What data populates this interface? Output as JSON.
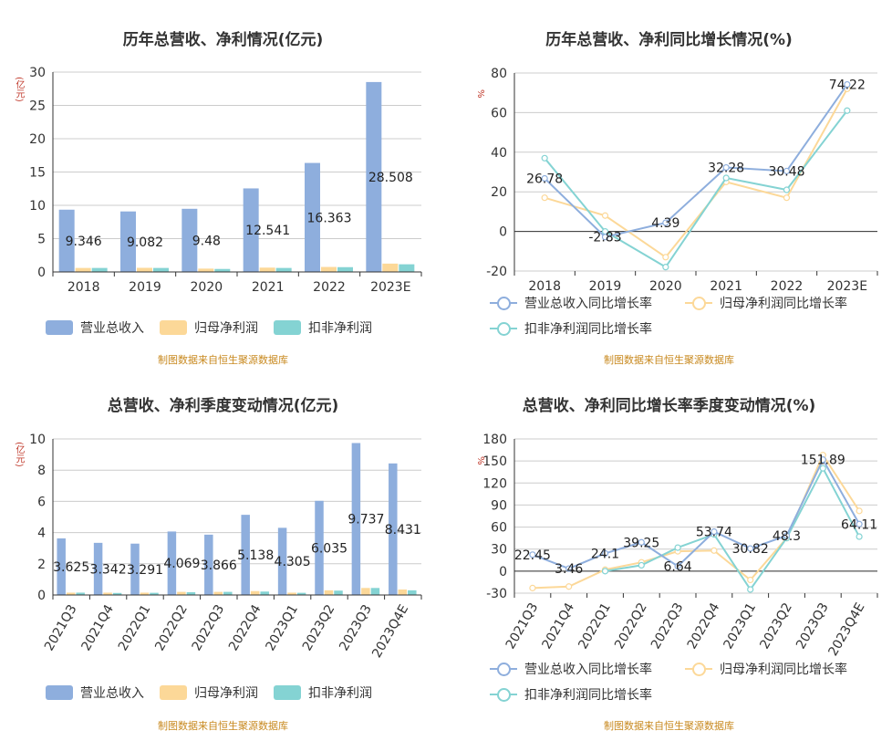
{
  "source_note": "制图数据来自恒生聚源数据库",
  "colors": {
    "revenue": "#8eaedd",
    "net_profit": "#fcd898",
    "deducted_profit": "#84d3d3"
  },
  "chart_data": [
    {
      "type": "bar",
      "title": "历年总营收、净利情况(亿元)",
      "ylabel": "(亿元)",
      "ylim": [
        0,
        30
      ],
      "yticks": [
        0,
        5,
        10,
        15,
        20,
        25,
        30
      ],
      "categories": [
        "2018",
        "2019",
        "2020",
        "2021",
        "2022",
        "2023E"
      ],
      "series": [
        {
          "name": "营业总收入",
          "values": [
            9.346,
            9.082,
            9.48,
            12.541,
            16.363,
            28.508
          ]
        },
        {
          "name": "归母净利润",
          "values": [
            0.6,
            0.62,
            0.5,
            0.65,
            0.75,
            1.25
          ]
        },
        {
          "name": "扣非净利润",
          "values": [
            0.6,
            0.6,
            0.45,
            0.6,
            0.72,
            1.15
          ]
        }
      ],
      "data_labels": [
        "9.346",
        "9.082",
        "9.48",
        "12.541",
        "16.363",
        "28.508"
      ]
    },
    {
      "type": "line",
      "title": "历年总营收、净利同比增长情况(%)",
      "ylabel": "%",
      "ylim": [
        -20,
        80
      ],
      "yticks": [
        -20,
        0,
        20,
        40,
        60,
        80
      ],
      "categories": [
        "2018",
        "2019",
        "2020",
        "2021",
        "2022",
        "2023E"
      ],
      "series": [
        {
          "name": "营业总收入同比增长率",
          "values": [
            26.78,
            -2.83,
            4.39,
            32.28,
            30.48,
            74.22
          ]
        },
        {
          "name": "归母净利润同比增长率",
          "values": [
            17,
            8,
            -13,
            25,
            17,
            72
          ]
        },
        {
          "name": "扣非净利润同比增长率",
          "values": [
            37,
            0,
            -18,
            27,
            21,
            61
          ]
        }
      ],
      "data_labels": [
        "26.78",
        "-2.83",
        "4.39",
        "32.28",
        "30.48",
        "74.22"
      ]
    },
    {
      "type": "bar",
      "title": "总营收、净利季度变动情况(亿元)",
      "ylabel": "(亿元)",
      "ylim": [
        0,
        10
      ],
      "yticks": [
        0,
        2,
        4,
        6,
        8,
        10
      ],
      "categories": [
        "2021Q3",
        "2021Q4",
        "2022Q1",
        "2022Q2",
        "2022Q3",
        "2022Q4",
        "2023Q1",
        "2023Q2",
        "2023Q3",
        "2023Q4E"
      ],
      "series": [
        {
          "name": "营业总收入",
          "values": [
            3.625,
            3.342,
            3.291,
            4.069,
            3.866,
            5.138,
            4.305,
            6.035,
            9.737,
            8.431
          ]
        },
        {
          "name": "归母净利润",
          "values": [
            0.15,
            0.15,
            0.15,
            0.2,
            0.2,
            0.25,
            0.15,
            0.3,
            0.45,
            0.35
          ]
        },
        {
          "name": "扣非净利润",
          "values": [
            0.15,
            0.13,
            0.14,
            0.18,
            0.2,
            0.22,
            0.14,
            0.28,
            0.45,
            0.3
          ]
        }
      ],
      "data_labels": [
        "3.625",
        "3.342",
        "3.291",
        "4.069",
        "3.866",
        "5.138",
        "4.305",
        "6.035",
        "9.737",
        "8.431"
      ]
    },
    {
      "type": "line",
      "title": "总营收、净利同比增长率季度变动情况(%)",
      "ylabel": "%",
      "ylim": [
        -30,
        180
      ],
      "yticks": [
        -30,
        0,
        30,
        60,
        90,
        120,
        150,
        180
      ],
      "categories": [
        "2021Q3",
        "2021Q4",
        "2022Q1",
        "2022Q2",
        "2022Q3",
        "2022Q4",
        "2023Q1",
        "2023Q2",
        "2023Q3",
        "2023Q4E"
      ],
      "series": [
        {
          "name": "营业总收入同比增长率",
          "values": [
            22.45,
            3.46,
            24.1,
            39.25,
            6.64,
            53.74,
            30.82,
            48.3,
            151.89,
            64.11
          ]
        },
        {
          "name": "归母净利润同比增长率",
          "values": [
            -23,
            -21,
            2,
            12,
            27,
            28,
            -12,
            45,
            158,
            82
          ]
        },
        {
          "name": "扣非净利润同比增长率",
          "values": [
            null,
            null,
            0,
            8,
            32,
            50,
            -25,
            45,
            140,
            47
          ]
        }
      ],
      "data_labels": [
        "22.45",
        "3.46",
        "24.1",
        "39.25",
        "6.64",
        "53.74",
        "30.82",
        "48.3",
        "151.89",
        "64.11"
      ]
    }
  ]
}
